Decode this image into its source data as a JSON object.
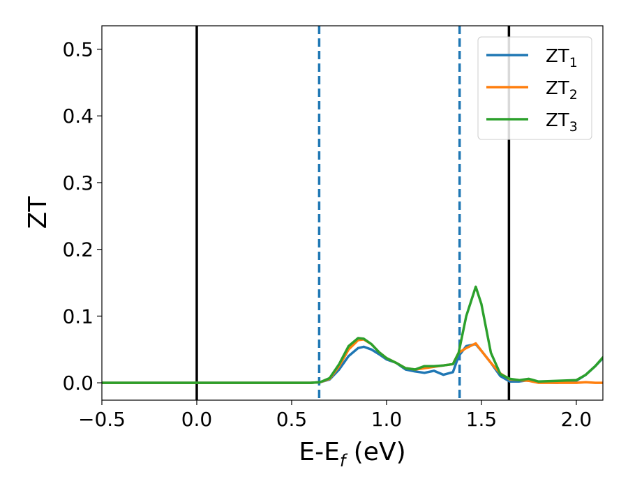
{
  "chart_data": {
    "type": "line",
    "xlabel": "E-E",
    "xlabel_sub": "f",
    "xlabel_unit": " (eV)",
    "ylabel": "ZT",
    "xlim": [
      -0.5,
      2.14
    ],
    "ylim": [
      -0.026,
      0.535
    ],
    "xticks": [
      -0.5,
      0.0,
      0.5,
      1.0,
      1.5,
      2.0
    ],
    "xtick_labels": [
      "−0.5",
      "0.0",
      "0.5",
      "1.0",
      "1.5",
      "2.0"
    ],
    "yticks": [
      0.0,
      0.1,
      0.2,
      0.3,
      0.4,
      0.5
    ],
    "ytick_labels": [
      "0.0",
      "0.1",
      "0.2",
      "0.3",
      "0.4",
      "0.5"
    ],
    "grid": false,
    "legend_position": "top-right",
    "vlines": [
      {
        "x": 0.0,
        "style": "solid",
        "color": "#000000"
      },
      {
        "x": 0.645,
        "style": "dashed",
        "color": "#1f77b4"
      },
      {
        "x": 1.385,
        "style": "dashed",
        "color": "#1f77b4"
      },
      {
        "x": 1.645,
        "style": "solid",
        "color": "#000000"
      }
    ],
    "series": [
      {
        "name": "ZT",
        "sub": "1",
        "color": "#1f77b4",
        "x": [
          -0.5,
          0.0,
          0.5,
          0.6,
          0.65,
          0.7,
          0.75,
          0.8,
          0.85,
          0.88,
          0.92,
          0.96,
          1.0,
          1.05,
          1.1,
          1.15,
          1.2,
          1.25,
          1.3,
          1.35,
          1.38,
          1.42,
          1.47,
          1.5,
          1.55,
          1.6,
          1.65,
          1.7,
          1.75,
          1.8,
          1.9,
          2.0,
          2.05,
          2.1,
          2.14
        ],
        "y": [
          0.0,
          0.0,
          0.0,
          0.0,
          0.001,
          0.005,
          0.02,
          0.04,
          0.052,
          0.054,
          0.05,
          0.043,
          0.035,
          0.03,
          0.02,
          0.017,
          0.015,
          0.018,
          0.012,
          0.016,
          0.04,
          0.055,
          0.058,
          0.048,
          0.03,
          0.01,
          0.002,
          0.002,
          0.004,
          0.001,
          0.0,
          0.003,
          0.012,
          0.025,
          0.037
        ]
      },
      {
        "name": "ZT",
        "sub": "2",
        "color": "#ff7f0e",
        "x": [
          -0.5,
          0.0,
          0.5,
          0.6,
          0.65,
          0.7,
          0.75,
          0.8,
          0.85,
          0.88,
          0.92,
          0.96,
          1.0,
          1.05,
          1.1,
          1.15,
          1.2,
          1.25,
          1.3,
          1.35,
          1.38,
          1.42,
          1.47,
          1.5,
          1.55,
          1.6,
          1.65,
          1.7,
          1.75,
          1.8,
          1.9,
          2.0,
          2.05,
          2.1,
          2.14
        ],
        "y": [
          0.0,
          0.0,
          0.0,
          0.0,
          0.001,
          0.006,
          0.025,
          0.05,
          0.064,
          0.065,
          0.058,
          0.046,
          0.037,
          0.03,
          0.022,
          0.02,
          0.022,
          0.024,
          0.026,
          0.028,
          0.045,
          0.052,
          0.059,
          0.048,
          0.03,
          0.014,
          0.005,
          0.004,
          0.003,
          0.0,
          0.0,
          0.0,
          0.001,
          0.0,
          0.0
        ]
      },
      {
        "name": "ZT",
        "sub": "3",
        "color": "#2ca02c",
        "x": [
          -0.5,
          0.0,
          0.5,
          0.6,
          0.65,
          0.7,
          0.75,
          0.8,
          0.85,
          0.88,
          0.92,
          0.96,
          1.0,
          1.05,
          1.1,
          1.15,
          1.2,
          1.25,
          1.3,
          1.35,
          1.38,
          1.42,
          1.47,
          1.5,
          1.55,
          1.6,
          1.65,
          1.7,
          1.75,
          1.8,
          1.9,
          2.0,
          2.05,
          2.1,
          2.14
        ],
        "y": [
          0.0,
          0.0,
          0.0,
          0.0,
          0.001,
          0.007,
          0.028,
          0.055,
          0.067,
          0.066,
          0.058,
          0.046,
          0.037,
          0.03,
          0.022,
          0.02,
          0.025,
          0.025,
          0.026,
          0.028,
          0.045,
          0.1,
          0.144,
          0.118,
          0.045,
          0.013,
          0.006,
          0.004,
          0.006,
          0.002,
          0.003,
          0.004,
          0.012,
          0.025,
          0.038
        ]
      }
    ]
  }
}
